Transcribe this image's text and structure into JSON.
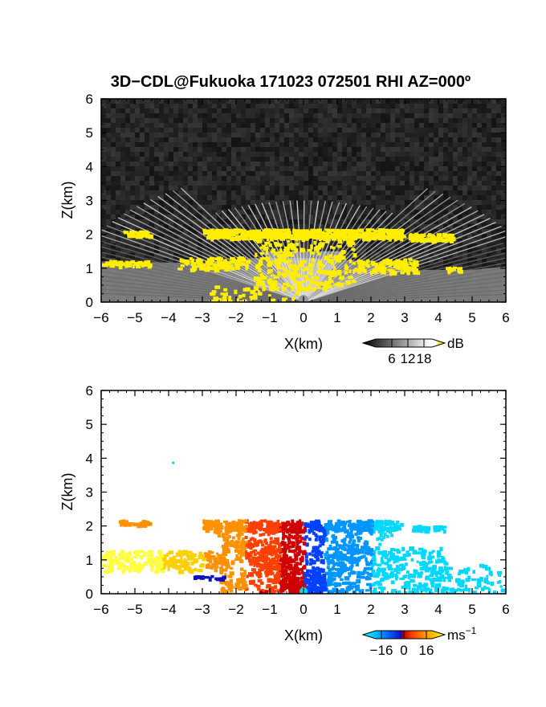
{
  "title": "3D−CDL@Fukuoka 171023 072501 RHI AZ=000º",
  "colors": {
    "echo_yellow": "#ffee00",
    "frame": "#000000",
    "panel1_background": "#1f1f1f",
    "wind_cmap": [
      "#00d8ff",
      "#0096ff",
      "#0040ff",
      "#1010c0",
      "#d00000",
      "#ff4000",
      "#ff9000",
      "#ffd000",
      "#ffff40"
    ]
  },
  "chart_data": [
    {
      "type": "heatmap",
      "panel": "backscatter intensity (RHI)",
      "xlabel": "X(km)",
      "ylabel": "Z(km)",
      "xlim": [
        -6,
        6
      ],
      "ylim": [
        0,
        6
      ],
      "xticks": [
        "−6",
        "−5",
        "−4",
        "−3",
        "−2",
        "−1",
        "0",
        "1",
        "2",
        "3",
        "4",
        "5",
        "6"
      ],
      "yticks": [
        "0",
        "1",
        "2",
        "3",
        "4",
        "5",
        "6"
      ],
      "grid": false,
      "colorbar": {
        "unit": "dB",
        "ticks": [
          "6",
          "12",
          "18"
        ],
        "range": [
          0,
          21
        ],
        "cmap": "grayscale with yellow top"
      },
      "features": [
        {
          "label": "cloud layer",
          "x_range": [
            -3,
            2.9
          ],
          "z_km": 2.05,
          "value_dB": 20
        },
        {
          "label": "echo top (left)",
          "x_range": [
            -5.4,
            -4.6
          ],
          "z_km": 2.05,
          "value_dB": 12
        },
        {
          "label": "echo top (right)",
          "x_range": [
            3.1,
            4.4
          ],
          "z_km": 1.95,
          "value_dB": 18
        },
        {
          "label": "lower boundary layer",
          "x_range": [
            -6,
            6
          ],
          "z_km_range": [
            0,
            1.3
          ],
          "value_dB": 14
        }
      ]
    },
    {
      "type": "heatmap",
      "panel": "Doppler velocity (RHI)",
      "xlabel": "X(km)",
      "ylabel": "Z(km)",
      "xlim": [
        -6,
        6
      ],
      "ylim": [
        0,
        6
      ],
      "xticks": [
        "−6",
        "−5",
        "−4",
        "−3",
        "−2",
        "−1",
        "0",
        "1",
        "2",
        "3",
        "4",
        "5",
        "6"
      ],
      "yticks": [
        "0",
        "1",
        "2",
        "3",
        "4",
        "5",
        "6"
      ],
      "grid": false,
      "colorbar": {
        "unit": "ms",
        "unit_exponent": "−1",
        "ticks": [
          "−16",
          "0",
          "16"
        ],
        "range": [
          -20,
          20
        ],
        "cmap": "cyan-blue-red-orange-yellow"
      },
      "features": [
        {
          "label": "approaching (negative)",
          "x_range": [
            0,
            4.1
          ],
          "z_km_range": [
            0,
            2.2
          ],
          "velocity_ms": -8
        },
        {
          "label": "receding (positive)",
          "x_range": [
            -3,
            0
          ],
          "z_km_range": [
            0,
            2.2
          ],
          "velocity_ms": 8
        },
        {
          "label": "isolated point",
          "x_km": -3.9,
          "z_km": 3.9,
          "velocity_ms": -18
        }
      ]
    }
  ]
}
